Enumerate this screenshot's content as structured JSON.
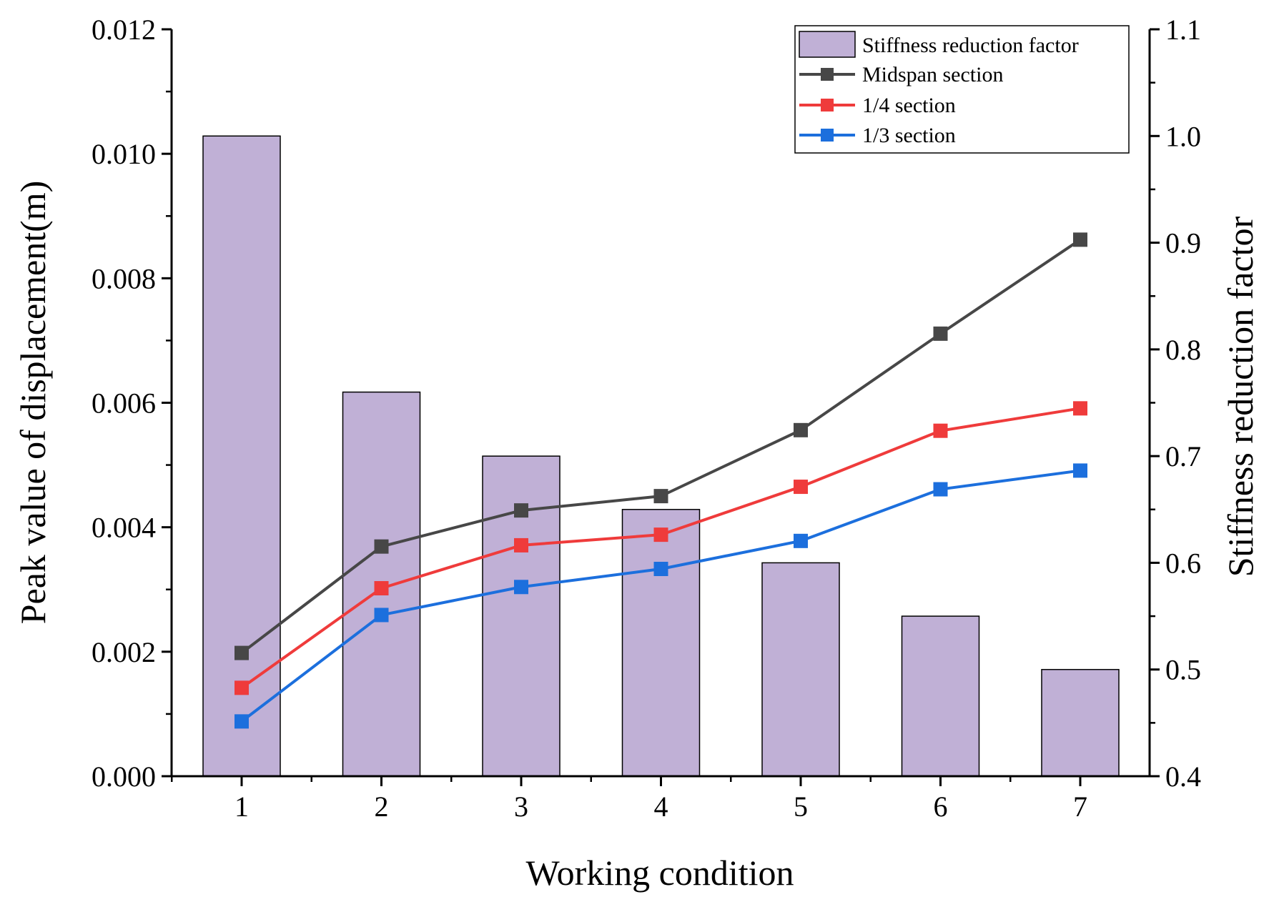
{
  "chart_data": {
    "type": "bar+line",
    "title": "",
    "xlabel": "Working condition",
    "ylabel": "Peak value of displacement(m)",
    "y2label": "Stiffness reduction factor",
    "categories": [
      "1",
      "2",
      "3",
      "4",
      "5",
      "6",
      "7"
    ],
    "ylim": [
      0,
      0.012
    ],
    "y2lim": [
      0.4,
      1.1
    ],
    "y_ticks": [
      "0.000",
      "0.002",
      "0.004",
      "0.006",
      "0.008",
      "0.010",
      "0.012"
    ],
    "y2_ticks": [
      "0.4",
      "0.5",
      "0.6",
      "0.7",
      "0.8",
      "0.9",
      "1.0",
      "1.1"
    ],
    "bars": {
      "name": "Stiffness reduction factor",
      "axis": "right",
      "color": "#c0b0d6",
      "values": [
        1.0,
        0.76,
        0.7,
        0.65,
        0.6,
        0.55,
        0.5
      ]
    },
    "series": [
      {
        "name": "Midspan section",
        "axis": "left",
        "color": "#474747",
        "values": [
          0.00198,
          0.00369,
          0.00427,
          0.0045,
          0.00556,
          0.00711,
          0.00862
        ]
      },
      {
        "name": "1/4 section",
        "axis": "left",
        "color": "#ef3b3b",
        "values": [
          0.00142,
          0.00302,
          0.00371,
          0.00388,
          0.00465,
          0.00555,
          0.00591
        ]
      },
      {
        "name": "1/3 section",
        "axis": "left",
        "color": "#1c6fdd",
        "values": [
          0.00088,
          0.00259,
          0.00304,
          0.00333,
          0.00378,
          0.00461,
          0.00491
        ]
      }
    ],
    "legend_position": "top-right"
  }
}
